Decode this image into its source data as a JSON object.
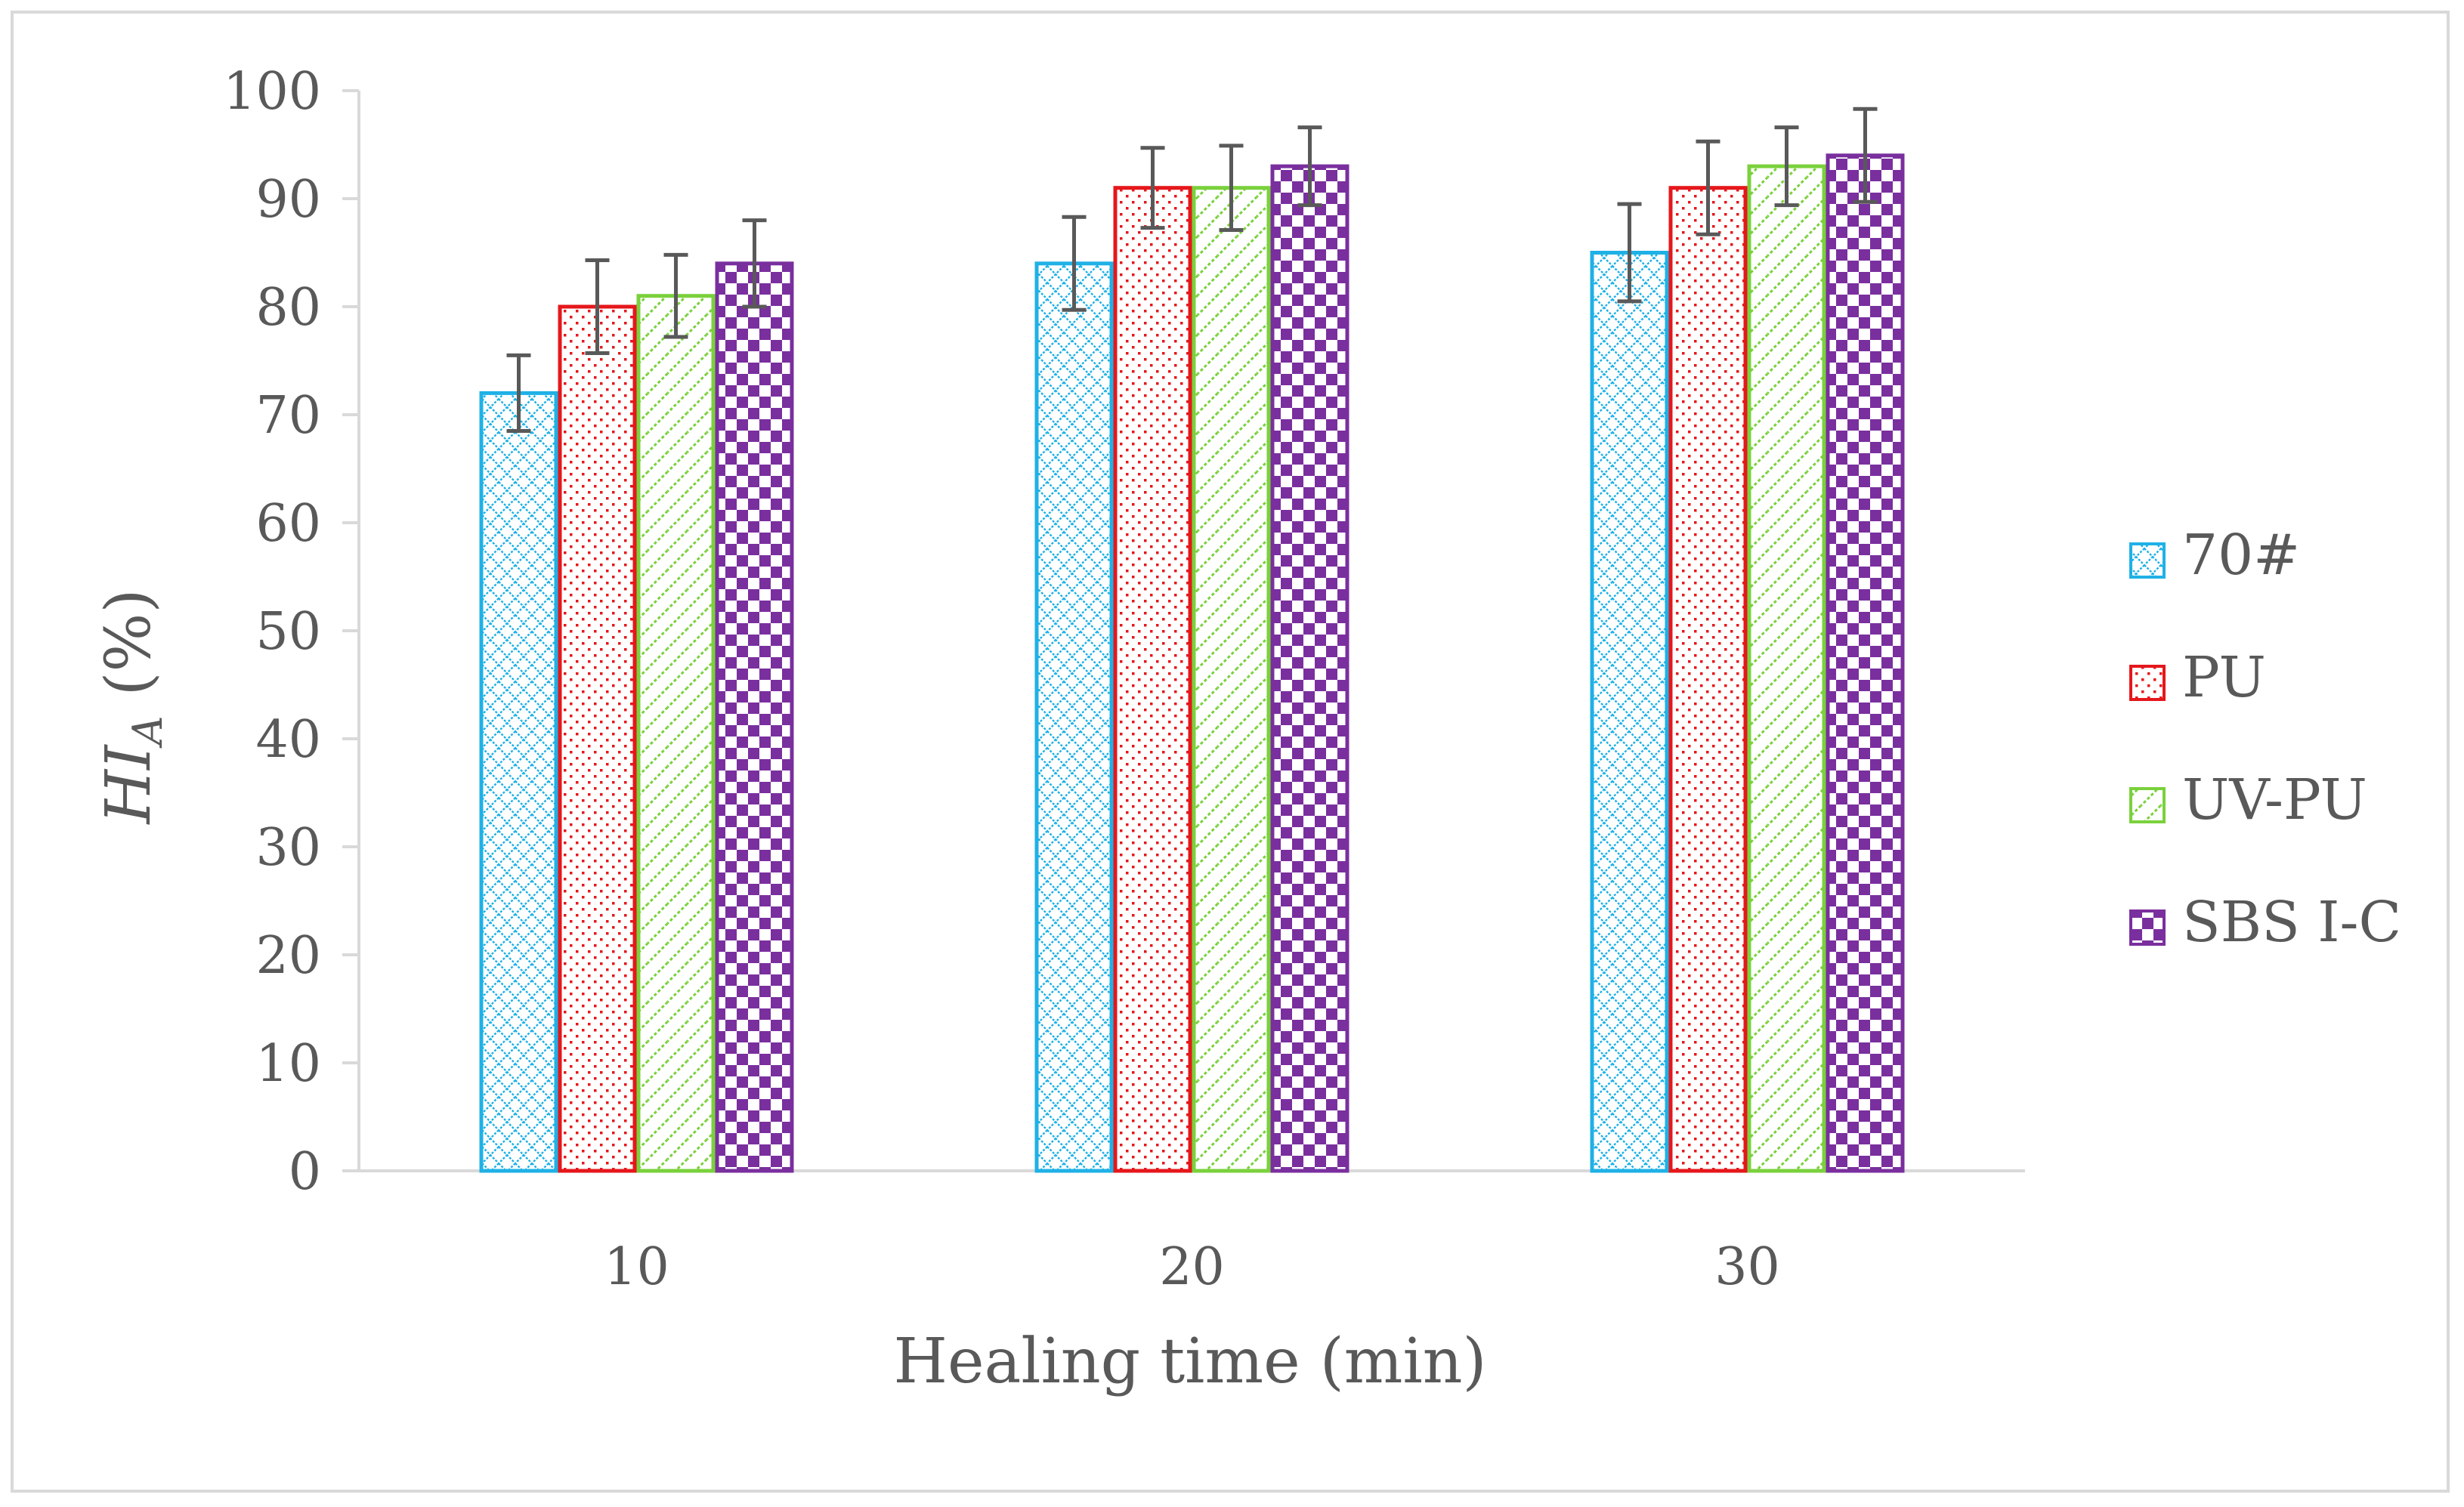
{
  "chart_data": {
    "type": "bar",
    "title": "",
    "xlabel": "Healing time (min)",
    "ylabel": {
      "main": "HI",
      "subscript": "A",
      "suffix": " (%)"
    },
    "categories": [
      "10",
      "20",
      "30"
    ],
    "ylim": [
      0,
      100
    ],
    "yticks": [
      0,
      10,
      20,
      30,
      40,
      50,
      60,
      70,
      80,
      90,
      100
    ],
    "grid": false,
    "legend_position": "right",
    "series": [
      {
        "name": "70#",
        "values": [
          72,
          84,
          85
        ],
        "errors": [
          3.5,
          4.3,
          4.5
        ],
        "color": "#1fb1e6",
        "pattern": "crosshatch"
      },
      {
        "name": "PU",
        "values": [
          80,
          91,
          91
        ],
        "errors": [
          4.3,
          3.7,
          4.3
        ],
        "color": "#e5171b",
        "pattern": "dots"
      },
      {
        "name": "UV-PU",
        "values": [
          81,
          91,
          93
        ],
        "errors": [
          3.8,
          3.9,
          3.6
        ],
        "color": "#7ad13c",
        "pattern": "diagonal"
      },
      {
        "name": "SBS I-C",
        "values": [
          84,
          93,
          94
        ],
        "errors": [
          4.0,
          3.6,
          4.3
        ],
        "color": "#7a2f9e",
        "pattern": "checker"
      }
    ]
  }
}
